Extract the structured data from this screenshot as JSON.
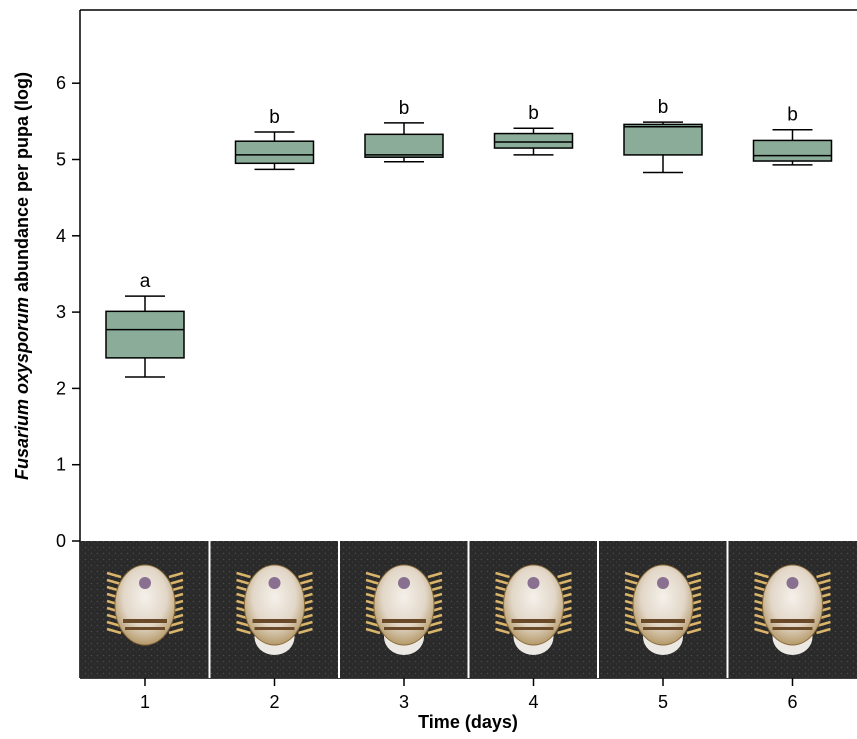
{
  "chart_data": {
    "type": "box",
    "xlabel": "Time (days)",
    "ylabel_italic": "Fusarium oxysporum",
    "ylabel_rest": " abundance per pupa  (log)",
    "ylim": [
      0,
      7
    ],
    "yticks": [
      0,
      1,
      2,
      3,
      4,
      5,
      6
    ],
    "categories": [
      "1",
      "2",
      "3",
      "4",
      "5",
      "6"
    ],
    "box_color": "#8aac98",
    "boxes": [
      {
        "day": "1",
        "min": 2.15,
        "q1": 2.4,
        "median": 2.77,
        "q3": 3.01,
        "max": 3.21,
        "letter": "a"
      },
      {
        "day": "2",
        "min": 4.87,
        "q1": 4.95,
        "median": 5.06,
        "q3": 5.24,
        "max": 5.36,
        "letter": "b"
      },
      {
        "day": "3",
        "min": 4.97,
        "q1": 5.03,
        "median": 5.06,
        "q3": 5.33,
        "max": 5.48,
        "letter": "b"
      },
      {
        "day": "4",
        "min": 5.06,
        "q1": 5.15,
        "median": 5.23,
        "q3": 5.34,
        "max": 5.41,
        "letter": "b"
      },
      {
        "day": "5",
        "min": 4.83,
        "q1": 5.06,
        "median": 5.43,
        "q3": 5.46,
        "max": 5.49,
        "letter": "b"
      },
      {
        "day": "6",
        "min": 4.93,
        "q1": 4.98,
        "median": 5.05,
        "q3": 5.25,
        "max": 5.39,
        "letter": "b"
      }
    ],
    "photo_strip": {
      "description": "pupa photographs, one per day"
    }
  }
}
